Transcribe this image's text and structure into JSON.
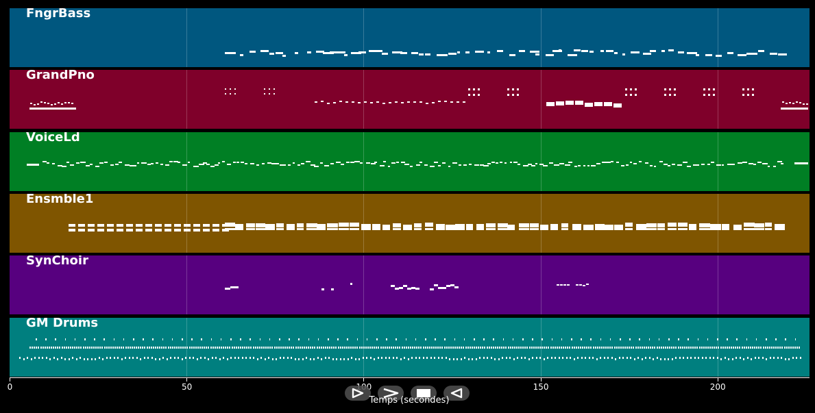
{
  "timeline": {
    "x_label": "Temps (secondes)",
    "ticks": [
      "0",
      "50",
      "100",
      "150",
      "200"
    ],
    "tick_values": [
      0,
      50,
      100,
      150,
      200
    ],
    "x_range": [
      0,
      226
    ]
  },
  "tracks": [
    {
      "name": "FngrBass",
      "color": "#00577f"
    },
    {
      "name": "GrandPno",
      "color": "#7f002a"
    },
    {
      "name": "VoiceLd",
      "color": "#007f24"
    },
    {
      "name": "Ensmble1",
      "color": "#7f5500"
    },
    {
      "name": "SynChoir",
      "color": "#57007f"
    },
    {
      "name": "GM Drums",
      "color": "#007f7f"
    }
  ],
  "transport": {
    "buttons": [
      {
        "name": "play-button",
        "icon": "play-icon"
      },
      {
        "name": "fast-forward-button",
        "icon": "fast-forward-icon"
      },
      {
        "name": "stop-button",
        "icon": "stop-icon"
      },
      {
        "name": "rewind-button",
        "icon": "rewind-icon"
      }
    ]
  }
}
